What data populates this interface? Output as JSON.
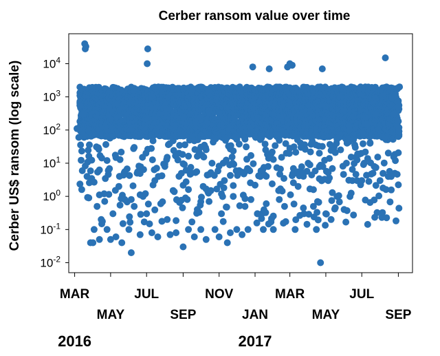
{
  "chart_data": {
    "type": "scatter",
    "title": "Cerber ransom value over time",
    "ylabel": "Cerber US$ ransom (log scale)",
    "xlabel": "",
    "y_scale": "log",
    "ylim": [
      0.005,
      80000
    ],
    "xlim": [
      "2016-02-20",
      "2017-09-25"
    ],
    "grid": false,
    "color": "#2a72b5",
    "y_ticks": [
      {
        "value": 0.01,
        "mant": "10",
        "exp": "-2"
      },
      {
        "value": 0.1,
        "mant": "10",
        "exp": "-1"
      },
      {
        "value": 1,
        "mant": "10",
        "exp": "0"
      },
      {
        "value": 10,
        "mant": "10",
        "exp": "1"
      },
      {
        "value": 100,
        "mant": "10",
        "exp": "2"
      },
      {
        "value": 1000,
        "mant": "10",
        "exp": "3"
      },
      {
        "value": 10000,
        "mant": "10",
        "exp": "4"
      }
    ],
    "x_ticks": [
      {
        "date": "2016-03-01",
        "label": "MAR",
        "row": 0
      },
      {
        "date": "2016-05-01",
        "label": "MAY",
        "row": 1
      },
      {
        "date": "2016-07-01",
        "label": "JUL",
        "row": 0
      },
      {
        "date": "2016-09-01",
        "label": "SEP",
        "row": 1
      },
      {
        "date": "2016-11-01",
        "label": "NOV",
        "row": 0
      },
      {
        "date": "2017-01-01",
        "label": "JAN",
        "row": 1
      },
      {
        "date": "2017-03-01",
        "label": "MAR",
        "row": 0
      },
      {
        "date": "2017-05-01",
        "label": "MAY",
        "row": 1
      },
      {
        "date": "2017-07-01",
        "label": "JUL",
        "row": 0
      },
      {
        "date": "2017-09-01",
        "label": "SEP",
        "row": 1
      }
    ],
    "year_labels": [
      {
        "date": "2016-03-01",
        "label": "2016"
      },
      {
        "date": "2017-01-01",
        "label": "2017"
      }
    ],
    "points": [
      {
        "x": "2016-03-05",
        "y": 110
      },
      {
        "x": "2016-03-08",
        "y": 60
      },
      {
        "x": "2016-03-10",
        "y": 550
      },
      {
        "x": "2016-03-18",
        "y": 40000
      },
      {
        "x": "2016-03-19",
        "y": 28000
      },
      {
        "x": "2016-03-20",
        "y": 33000
      },
      {
        "x": "2016-03-15",
        "y": 300
      },
      {
        "x": "2016-03-22",
        "y": 4
      },
      {
        "x": "2016-03-25",
        "y": 0.9
      },
      {
        "x": "2016-03-28",
        "y": 0.04
      },
      {
        "x": "2016-04-01",
        "y": 0.04
      },
      {
        "x": "2016-04-03",
        "y": 0.1
      },
      {
        "x": "2016-04-08",
        "y": 0.5
      },
      {
        "x": "2016-04-12",
        "y": 0.05
      },
      {
        "x": "2016-04-15",
        "y": 0.2
      },
      {
        "x": "2016-04-20",
        "y": 1.2
      },
      {
        "x": "2016-04-25",
        "y": 0.1
      },
      {
        "x": "2016-05-01",
        "y": 0.05
      },
      {
        "x": "2016-05-05",
        "y": 0.3
      },
      {
        "x": "2016-05-10",
        "y": 0.06
      },
      {
        "x": "2016-05-15",
        "y": 2
      },
      {
        "x": "2016-05-20",
        "y": 0.04
      },
      {
        "x": "2016-05-25",
        "y": 0.8
      },
      {
        "x": "2016-06-01",
        "y": 0.1
      },
      {
        "x": "2016-06-05",
        "y": 0.02
      },
      {
        "x": "2016-06-10",
        "y": 0.5
      },
      {
        "x": "2016-06-15",
        "y": 5
      },
      {
        "x": "2016-06-20",
        "y": 0.07
      },
      {
        "x": "2016-06-25",
        "y": 1
      },
      {
        "x": "2016-07-01",
        "y": 0.3
      },
      {
        "x": "2016-07-03",
        "y": 28000
      },
      {
        "x": "2016-07-02",
        "y": 10000
      },
      {
        "x": "2016-07-10",
        "y": 0.08
      },
      {
        "x": "2016-07-15",
        "y": 3
      },
      {
        "x": "2016-07-20",
        "y": 0.06
      },
      {
        "x": "2016-07-25",
        "y": 0.6
      },
      {
        "x": "2016-08-01",
        "y": 8
      },
      {
        "x": "2016-08-05",
        "y": 0.2
      },
      {
        "x": "2016-08-10",
        "y": 0.07
      },
      {
        "x": "2016-08-15",
        "y": 1.5
      },
      {
        "x": "2016-08-20",
        "y": 0.08
      },
      {
        "x": "2016-08-25",
        "y": 20
      },
      {
        "x": "2016-09-01",
        "y": 0.03
      },
      {
        "x": "2016-09-05",
        "y": 0.9
      },
      {
        "x": "2016-09-10",
        "y": 0.1
      },
      {
        "x": "2016-09-15",
        "y": 5
      },
      {
        "x": "2016-09-20",
        "y": 0.06
      },
      {
        "x": "2016-09-25",
        "y": 0.4
      },
      {
        "x": "2016-10-01",
        "y": 0.1
      },
      {
        "x": "2016-10-05",
        "y": 2
      },
      {
        "x": "2016-10-10",
        "y": 0.05
      },
      {
        "x": "2016-10-15",
        "y": 0.7
      },
      {
        "x": "2016-10-20",
        "y": 10
      },
      {
        "x": "2016-10-25",
        "y": 0.1
      },
      {
        "x": "2016-11-01",
        "y": 0.06
      },
      {
        "x": "2016-11-05",
        "y": 0.3
      },
      {
        "x": "2016-11-10",
        "y": 3
      },
      {
        "x": "2016-11-15",
        "y": 0.04
      },
      {
        "x": "2016-11-20",
        "y": 0.08
      },
      {
        "x": "2016-11-25",
        "y": 1
      },
      {
        "x": "2016-12-01",
        "y": 0.1
      },
      {
        "x": "2016-12-05",
        "y": 6
      },
      {
        "x": "2016-12-10",
        "y": 0.07
      },
      {
        "x": "2016-12-15",
        "y": 0.5
      },
      {
        "x": "2016-12-20",
        "y": 0.1
      },
      {
        "x": "2016-12-25",
        "y": 0.8
      },
      {
        "x": "2016-12-28",
        "y": 8000
      },
      {
        "x": "2017-01-05",
        "y": 0.3
      },
      {
        "x": "2017-01-10",
        "y": 4
      },
      {
        "x": "2017-01-15",
        "y": 0.1
      },
      {
        "x": "2017-01-20",
        "y": 0.6
      },
      {
        "x": "2017-01-25",
        "y": 7000
      },
      {
        "x": "2017-02-01",
        "y": 0.1
      },
      {
        "x": "2017-02-10",
        "y": 1.5
      },
      {
        "x": "2017-02-15",
        "y": 15
      },
      {
        "x": "2017-02-20",
        "y": 0.5
      },
      {
        "x": "2017-02-25",
        "y": 8000
      },
      {
        "x": "2017-03-01",
        "y": 10000
      },
      {
        "x": "2017-03-05",
        "y": 9000
      },
      {
        "x": "2017-03-10",
        "y": 0.1
      },
      {
        "x": "2017-03-15",
        "y": 2
      },
      {
        "x": "2017-03-20",
        "y": 30
      },
      {
        "x": "2017-03-25",
        "y": 0.3
      },
      {
        "x": "2017-04-01",
        "y": 10
      },
      {
        "x": "2017-04-10",
        "y": 0.5
      },
      {
        "x": "2017-04-15",
        "y": 0.1
      },
      {
        "x": "2017-04-20",
        "y": 20
      },
      {
        "x": "2017-04-22",
        "y": 0.01
      },
      {
        "x": "2017-04-25",
        "y": 7000
      },
      {
        "x": "2017-05-01",
        "y": 0.3
      },
      {
        "x": "2017-05-05",
        "y": 3
      },
      {
        "x": "2017-05-10",
        "y": 0.2
      },
      {
        "x": "2017-05-15",
        "y": 30
      },
      {
        "x": "2017-05-20",
        "y": 1
      },
      {
        "x": "2017-06-01",
        "y": 0.4
      },
      {
        "x": "2017-06-05",
        "y": 10
      },
      {
        "x": "2017-06-10",
        "y": 100
      },
      {
        "x": "2017-06-15",
        "y": 3
      },
      {
        "x": "2017-06-20",
        "y": 30
      },
      {
        "x": "2017-07-01",
        "y": 3
      },
      {
        "x": "2017-07-05",
        "y": 10
      },
      {
        "x": "2017-07-10",
        "y": 150
      },
      {
        "x": "2017-07-15",
        "y": 40
      },
      {
        "x": "2017-07-20",
        "y": 5
      },
      {
        "x": "2017-07-25",
        "y": 300
      },
      {
        "x": "2017-08-01",
        "y": 3
      },
      {
        "x": "2017-08-05",
        "y": 60
      },
      {
        "x": "2017-08-10",
        "y": 15000
      },
      {
        "x": "2017-08-15",
        "y": 4
      },
      {
        "x": "2017-08-20",
        "y": 4
      },
      {
        "x": "2017-08-25",
        "y": 300
      },
      {
        "x": "2017-09-01",
        "y": 500
      },
      {
        "x": "2017-09-03",
        "y": 2000
      }
    ]
  }
}
